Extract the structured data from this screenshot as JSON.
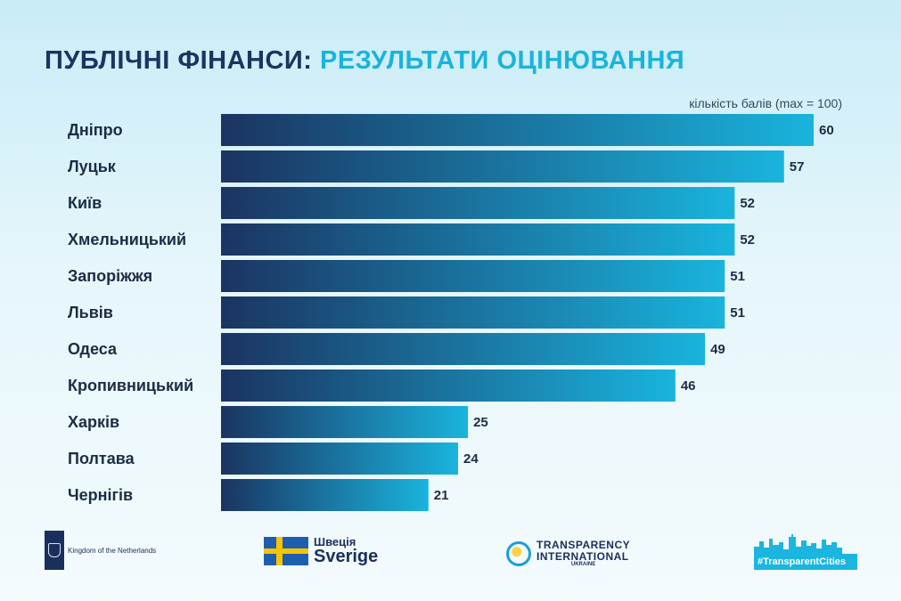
{
  "header": {
    "title_part1": "ПУБЛІЧНІ ФІНАНСИ:",
    "title_part2": "РЕЗУЛЬТАТИ ОЦІНЮВАННЯ"
  },
  "chart_data": {
    "type": "bar",
    "orientation": "horizontal",
    "title": "ПУБЛІЧНІ ФІНАНСИ: РЕЗУЛЬТАТИ ОЦІНЮВАННЯ",
    "unit_label": "кількість балів (max = 100)",
    "xlim": [
      0,
      100
    ],
    "grid": false,
    "categories": [
      "Дніпро",
      "Луцьк",
      "Київ",
      "Хмельницький",
      "Запоріжжя",
      "Львів",
      "Одеса",
      "Кропивницький",
      "Харків",
      "Полтава",
      "Чернігів"
    ],
    "values": [
      60,
      57,
      52,
      52,
      51,
      51,
      49,
      46,
      25,
      24,
      21
    ],
    "bar_gradient": [
      "#1b3461",
      "#19b4dd"
    ]
  },
  "footer": {
    "netherlands_text": "Kingdom of the Netherlands",
    "sweden_line1": "Швеція",
    "sweden_line2": "Sverige",
    "ti_line1": "TRANSPARENCY",
    "ti_line2": "INTERNATIONAL",
    "ti_line3": "UKRAINE",
    "tc_tag": "#TransparentCities"
  }
}
